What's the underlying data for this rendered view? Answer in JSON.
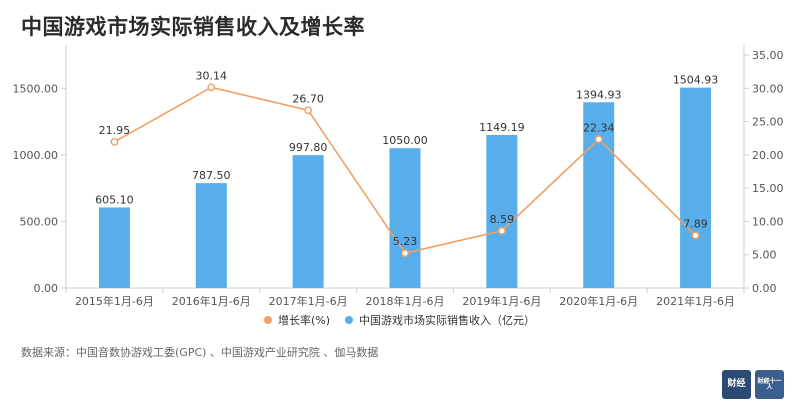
{
  "title": "中国游戏市场实际销售收入及增长率",
  "source": "数据来源：中国音数协游戏工委(GPC) 、中国游戏产业研究院 、伽马数据",
  "colors": {
    "bar": "#57aeea",
    "line": "#f0a064",
    "axis": "#cfcfcf",
    "text": "#555555"
  },
  "logos": {
    "left_mark": "财经",
    "right_mark": "財經十一人"
  },
  "chart_data": {
    "type": "bar+line",
    "categories": [
      "2015年1月-6月",
      "2016年1月-6月",
      "2017年1月-6月",
      "2018年1月-6月",
      "2019年1月-6月",
      "2020年1月-6月",
      "2021年1月-6月"
    ],
    "series": [
      {
        "name": "中国游戏市场实际销售收入（亿元）",
        "type": "bar",
        "axis": "left",
        "values": [
          605.1,
          787.5,
          997.8,
          1050.0,
          1149.19,
          1394.93,
          1504.93
        ],
        "labels": [
          "605.10",
          "787.50",
          "997.80",
          "1050.00",
          "1149.19",
          "1394.93",
          "1504.93"
        ]
      },
      {
        "name": "增长率(%)",
        "type": "line",
        "axis": "right",
        "values": [
          21.95,
          30.14,
          26.7,
          5.23,
          8.59,
          22.34,
          7.89
        ],
        "labels": [
          "21.95",
          "30.14",
          "26.70",
          "5.23",
          "8.59",
          "22.34",
          "7.89"
        ]
      }
    ],
    "y_left": {
      "ylim": [
        0,
        1750
      ],
      "ticks": [
        "0.00",
        "500.00",
        "1000.00",
        "1500.00"
      ],
      "tick_values": [
        0,
        500,
        1000,
        1500
      ]
    },
    "y_right": {
      "ylim": [
        0,
        35
      ],
      "ticks": [
        "0.00",
        "5.00",
        "10.00",
        "15.00",
        "20.00",
        "25.00",
        "30.00",
        "35.00"
      ],
      "tick_values": [
        0,
        5,
        10,
        15,
        20,
        25,
        30,
        35
      ]
    },
    "legend": {
      "position": "bottom-center",
      "items": [
        "增长率(%)",
        "中国游戏市场实际销售收入（亿元）"
      ]
    },
    "grid": false
  }
}
